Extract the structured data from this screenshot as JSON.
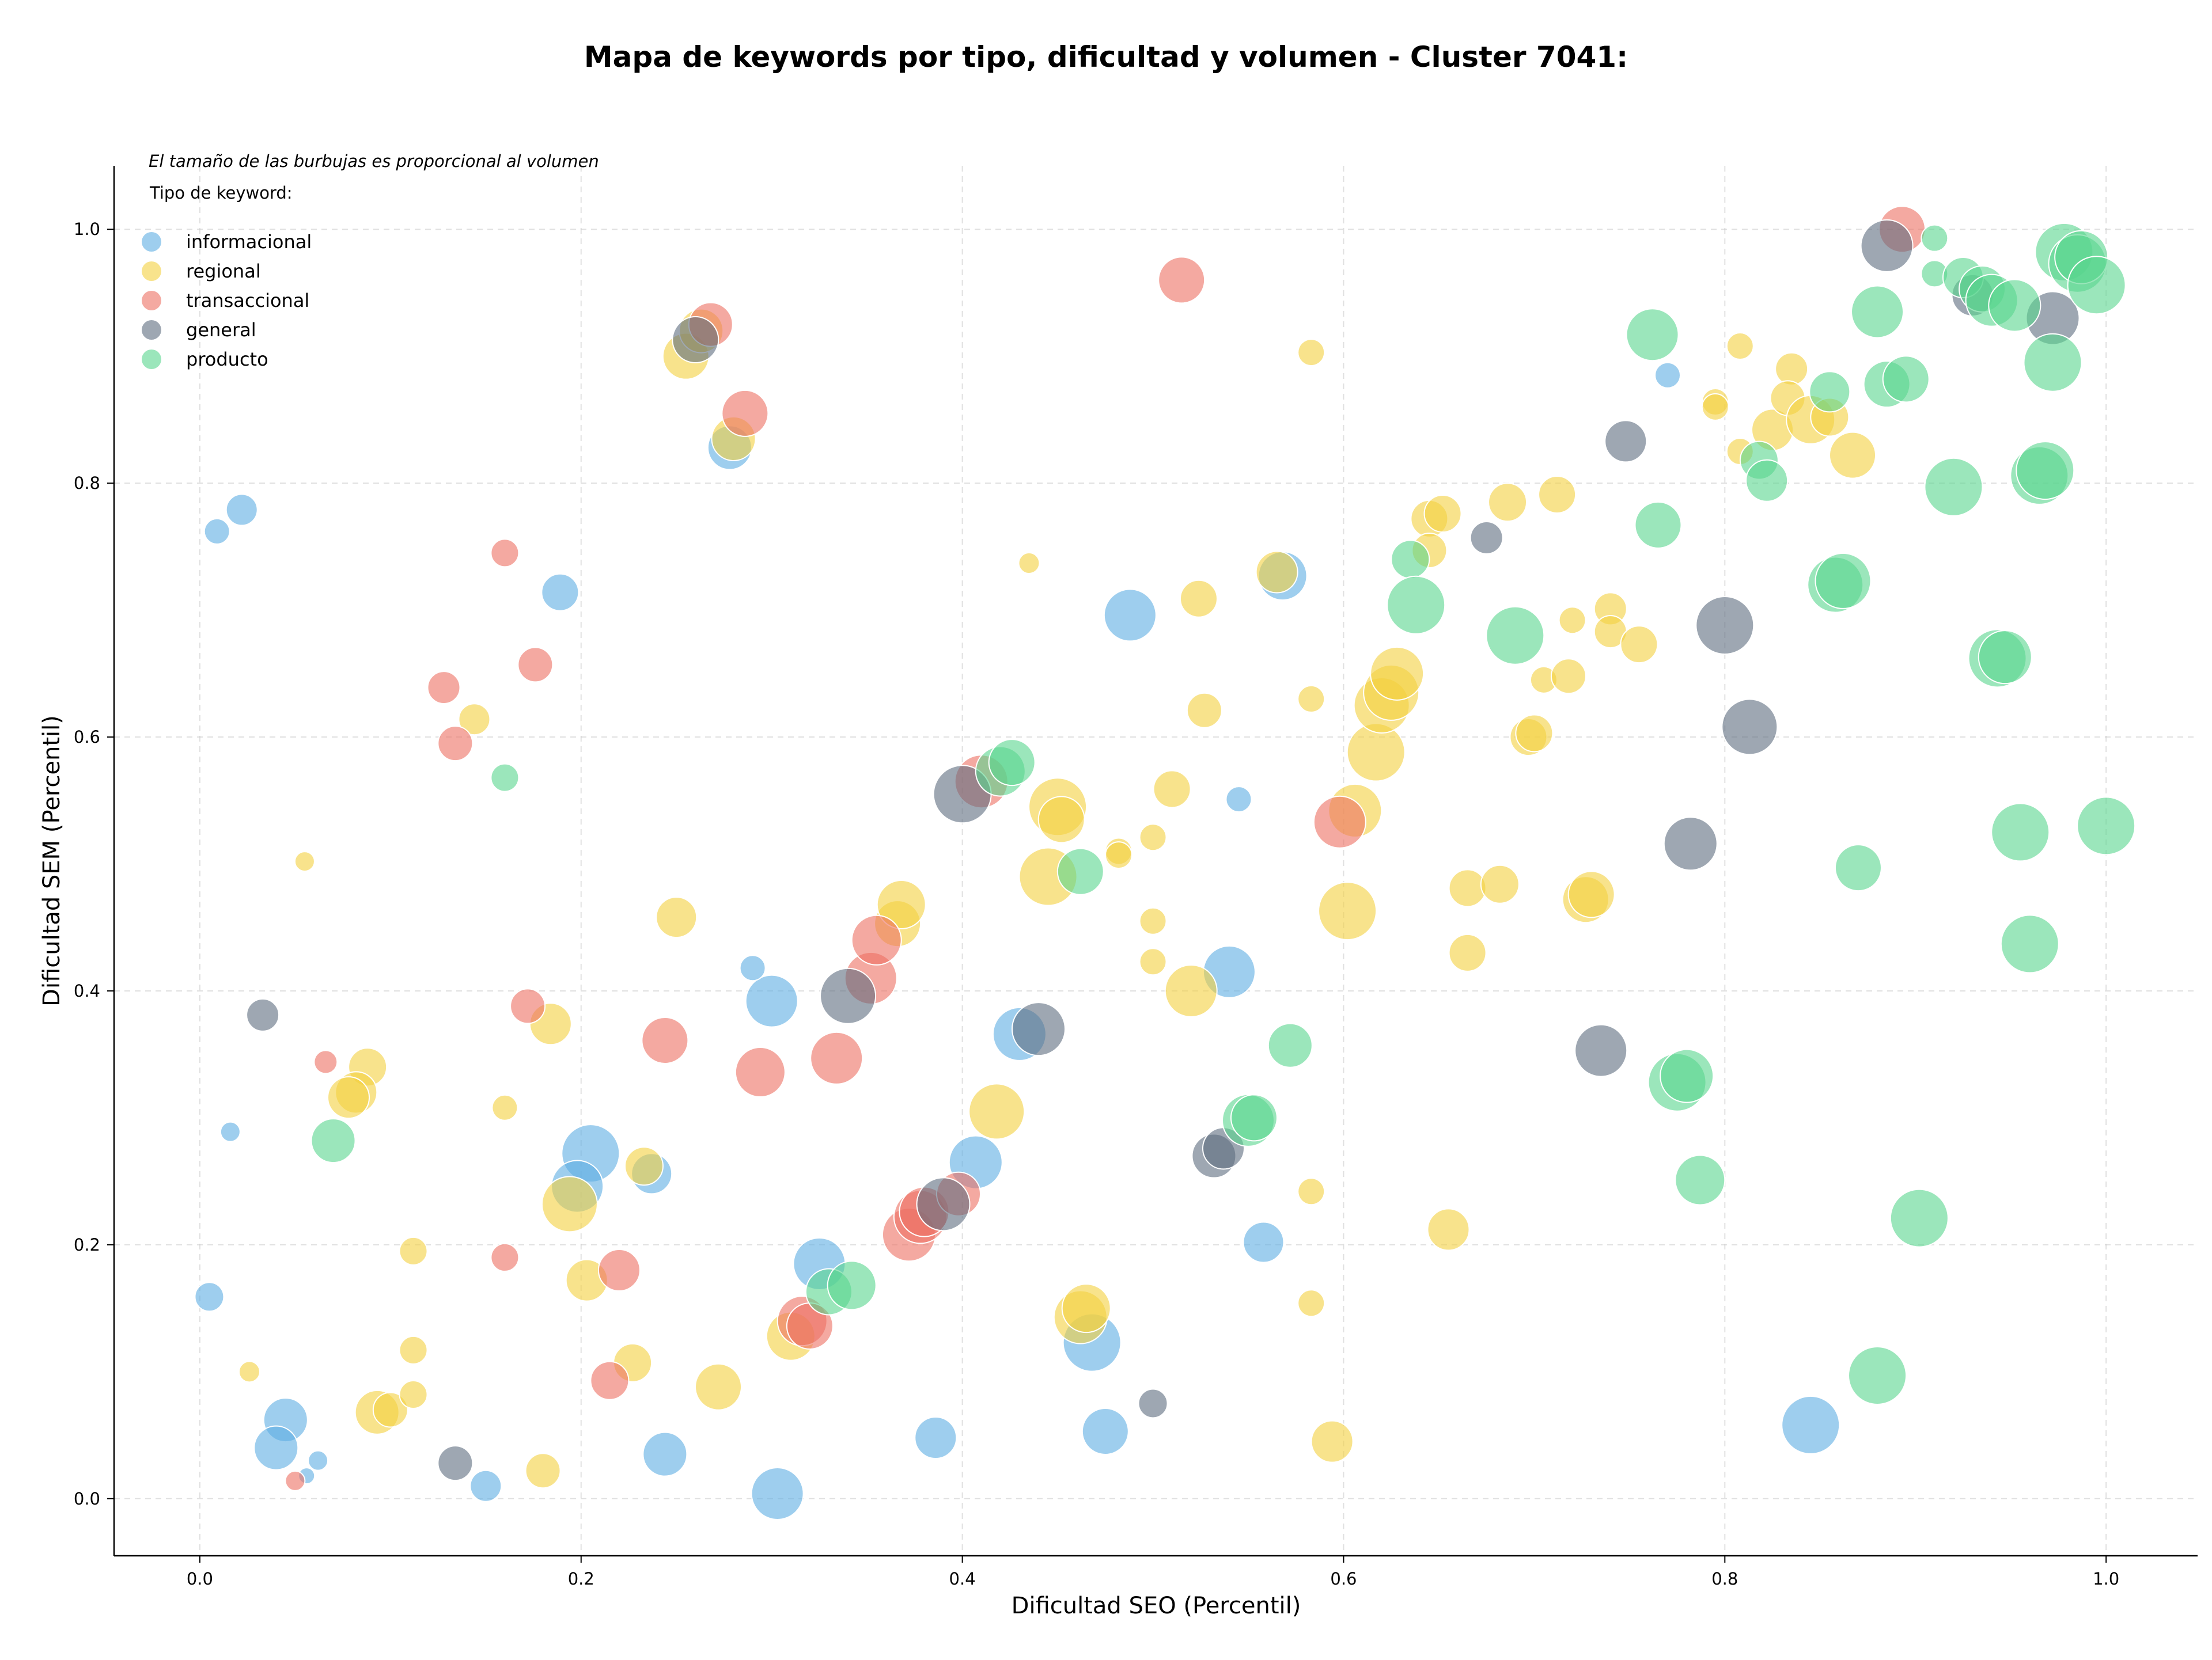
{
  "chart_data": {
    "type": "scatter",
    "title": "Mapa de keywords por tipo, dificultad y volumen - Cluster 7041:",
    "xlabel": "Dificultad SEO (Percentil)",
    "ylabel": "Dificultad SEM (Percentil)",
    "xlim": [
      -0.045,
      1.048
    ],
    "ylim": [
      -0.045,
      1.05
    ],
    "xticks": [
      "0.0",
      "0.2",
      "0.4",
      "0.6",
      "0.8",
      "1.0"
    ],
    "yticks": [
      "0.0",
      "0.2",
      "0.4",
      "0.6",
      "0.8",
      "1.0"
    ],
    "grid": true,
    "legend_position": "top-left",
    "note": "El tamaño de las burbujas es proporcional al volumen",
    "legend_title": "Tipo de keyword:",
    "series": [
      {
        "name": "informacional",
        "color": "#5DADE2",
        "points": [
          [
            0.009,
            0.762,
            22
          ],
          [
            0.022,
            0.779,
            27
          ],
          [
            0.189,
            0.714,
            32
          ],
          [
            0.016,
            0.289,
            17
          ],
          [
            0.005,
            0.159,
            25
          ],
          [
            0.045,
            0.062,
            38
          ],
          [
            0.04,
            0.04,
            38
          ],
          [
            0.062,
            0.03,
            17
          ],
          [
            0.056,
            0.018,
            14
          ],
          [
            0.15,
            0.01,
            27
          ],
          [
            0.205,
            0.272,
            50
          ],
          [
            0.198,
            0.246,
            45
          ],
          [
            0.237,
            0.256,
            35
          ],
          [
            0.244,
            0.035,
            38
          ],
          [
            0.3,
            0.392,
            45
          ],
          [
            0.29,
            0.418,
            22
          ],
          [
            0.303,
            0.004,
            45
          ],
          [
            0.325,
            0.185,
            45
          ],
          [
            0.278,
            0.828,
            38
          ],
          [
            0.386,
            0.048,
            36
          ],
          [
            0.407,
            0.265,
            46
          ],
          [
            0.43,
            0.366,
            46
          ],
          [
            0.488,
            0.696,
            45
          ],
          [
            0.468,
            0.123,
            50
          ],
          [
            0.475,
            0.053,
            40
          ],
          [
            0.54,
            0.415,
            45
          ],
          [
            0.545,
            0.551,
            22
          ],
          [
            0.558,
            0.202,
            35
          ],
          [
            0.568,
            0.727,
            42
          ],
          [
            0.77,
            0.885,
            22
          ],
          [
            0.845,
            0.058,
            50
          ]
        ]
      },
      {
        "name": "regional",
        "color": "#F4D03F",
        "points": [
          [
            0.055,
            0.502,
            17
          ],
          [
            0.026,
            0.1,
            18
          ],
          [
            0.088,
            0.34,
            33
          ],
          [
            0.082,
            0.32,
            36
          ],
          [
            0.078,
            0.316,
            36
          ],
          [
            0.093,
            0.068,
            38
          ],
          [
            0.1,
            0.07,
            30
          ],
          [
            0.112,
            0.195,
            24
          ],
          [
            0.112,
            0.117,
            24
          ],
          [
            0.112,
            0.082,
            24
          ],
          [
            0.144,
            0.614,
            27
          ],
          [
            0.16,
            0.308,
            22
          ],
          [
            0.184,
            0.374,
            36
          ],
          [
            0.18,
            0.022,
            30
          ],
          [
            0.194,
            0.232,
            48
          ],
          [
            0.203,
            0.172,
            36
          ],
          [
            0.233,
            0.262,
            33
          ],
          [
            0.227,
            0.107,
            33
          ],
          [
            0.25,
            0.458,
            35
          ],
          [
            0.255,
            0.9,
            40
          ],
          [
            0.263,
            0.92,
            38
          ],
          [
            0.28,
            0.835,
            38
          ],
          [
            0.272,
            0.088,
            40
          ],
          [
            0.31,
            0.128,
            42
          ],
          [
            0.366,
            0.453,
            40
          ],
          [
            0.368,
            0.468,
            42
          ],
          [
            0.418,
            0.305,
            48
          ],
          [
            0.435,
            0.737,
            18
          ],
          [
            0.445,
            0.49,
            50
          ],
          [
            0.45,
            0.545,
            50
          ],
          [
            0.452,
            0.535,
            40
          ],
          [
            0.462,
            0.143,
            46
          ],
          [
            0.465,
            0.15,
            42
          ],
          [
            0.482,
            0.51,
            23
          ],
          [
            0.482,
            0.507,
            23
          ],
          [
            0.5,
            0.521,
            23
          ],
          [
            0.5,
            0.455,
            23
          ],
          [
            0.5,
            0.423,
            23
          ],
          [
            0.52,
            0.4,
            45
          ],
          [
            0.524,
            0.709,
            32
          ],
          [
            0.527,
            0.621,
            30
          ],
          [
            0.51,
            0.559,
            32
          ],
          [
            0.565,
            0.73,
            36
          ],
          [
            0.583,
            0.903,
            23
          ],
          [
            0.583,
            0.63,
            23
          ],
          [
            0.583,
            0.242,
            23
          ],
          [
            0.583,
            0.154,
            23
          ],
          [
            0.594,
            0.045,
            36
          ],
          [
            0.602,
            0.463,
            50
          ],
          [
            0.606,
            0.542,
            46
          ],
          [
            0.617,
            0.588,
            50
          ],
          [
            0.62,
            0.625,
            48
          ],
          [
            0.625,
            0.635,
            48
          ],
          [
            0.628,
            0.65,
            46
          ],
          [
            0.645,
            0.772,
            32
          ],
          [
            0.652,
            0.776,
            32
          ],
          [
            0.645,
            0.747,
            30
          ],
          [
            0.655,
            0.212,
            36
          ],
          [
            0.665,
            0.481,
            32
          ],
          [
            0.665,
            0.43,
            32
          ],
          [
            0.682,
            0.484,
            33
          ],
          [
            0.686,
            0.785,
            33
          ],
          [
            0.697,
            0.6,
            32
          ],
          [
            0.7,
            0.603,
            32
          ],
          [
            0.705,
            0.645,
            23
          ],
          [
            0.712,
            0.791,
            32
          ],
          [
            0.718,
            0.648,
            30
          ],
          [
            0.72,
            0.692,
            23
          ],
          [
            0.727,
            0.472,
            40
          ],
          [
            0.73,
            0.476,
            40
          ],
          [
            0.74,
            0.701,
            28
          ],
          [
            0.74,
            0.683,
            28
          ],
          [
            0.755,
            0.673,
            32
          ],
          [
            0.795,
            0.864,
            23
          ],
          [
            0.795,
            0.86,
            23
          ],
          [
            0.808,
            0.908,
            23
          ],
          [
            0.808,
            0.825,
            23
          ],
          [
            0.825,
            0.842,
            36
          ],
          [
            0.835,
            0.89,
            28
          ],
          [
            0.833,
            0.867,
            30
          ],
          [
            0.845,
            0.85,
            42
          ],
          [
            0.855,
            0.852,
            33
          ],
          [
            0.867,
            0.822,
            40
          ]
        ]
      },
      {
        "name": "transaccional",
        "color": "#EC7063",
        "points": [
          [
            0.05,
            0.014,
            17
          ],
          [
            0.066,
            0.344,
            20
          ],
          [
            0.128,
            0.639,
            28
          ],
          [
            0.134,
            0.595,
            30
          ],
          [
            0.16,
            0.745,
            24
          ],
          [
            0.16,
            0.19,
            24
          ],
          [
            0.172,
            0.388,
            30
          ],
          [
            0.176,
            0.657,
            30
          ],
          [
            0.215,
            0.093,
            33
          ],
          [
            0.22,
            0.18,
            36
          ],
          [
            0.244,
            0.361,
            40
          ],
          [
            0.268,
            0.925,
            38
          ],
          [
            0.286,
            0.855,
            40
          ],
          [
            0.294,
            0.336,
            43
          ],
          [
            0.316,
            0.14,
            43
          ],
          [
            0.32,
            0.136,
            40
          ],
          [
            0.334,
            0.347,
            45
          ],
          [
            0.352,
            0.41,
            45
          ],
          [
            0.355,
            0.44,
            43
          ],
          [
            0.372,
            0.208,
            46
          ],
          [
            0.378,
            0.222,
            46
          ],
          [
            0.38,
            0.226,
            43
          ],
          [
            0.398,
            0.24,
            38
          ],
          [
            0.41,
            0.565,
            46
          ],
          [
            0.515,
            0.96,
            40
          ],
          [
            0.598,
            0.533,
            45
          ],
          [
            0.893,
            1.0,
            40
          ]
        ]
      },
      {
        "name": "general",
        "color": "#5D6D7E",
        "points": [
          [
            0.033,
            0.381,
            28
          ],
          [
            0.134,
            0.028,
            30
          ],
          [
            0.26,
            0.913,
            40
          ],
          [
            0.34,
            0.396,
            48
          ],
          [
            0.39,
            0.232,
            46
          ],
          [
            0.4,
            0.555,
            50
          ],
          [
            0.44,
            0.37,
            46
          ],
          [
            0.5,
            0.075,
            25
          ],
          [
            0.532,
            0.27,
            38
          ],
          [
            0.537,
            0.276,
            36
          ],
          [
            0.675,
            0.757,
            28
          ],
          [
            0.735,
            0.353,
            45
          ],
          [
            0.748,
            0.833,
            36
          ],
          [
            0.782,
            0.516,
            46
          ],
          [
            0.8,
            0.688,
            50
          ],
          [
            0.813,
            0.608,
            48
          ],
          [
            0.885,
            0.987,
            45
          ],
          [
            0.93,
            0.948,
            36
          ],
          [
            0.972,
            0.93,
            46
          ]
        ]
      },
      {
        "name": "producto",
        "color": "#58D68D",
        "points": [
          [
            0.07,
            0.282,
            38
          ],
          [
            0.16,
            0.568,
            24
          ],
          [
            0.33,
            0.163,
            40
          ],
          [
            0.342,
            0.168,
            42
          ],
          [
            0.42,
            0.573,
            43
          ],
          [
            0.426,
            0.58,
            40
          ],
          [
            0.462,
            0.494,
            40
          ],
          [
            0.55,
            0.298,
            45
          ],
          [
            0.553,
            0.3,
            40
          ],
          [
            0.572,
            0.357,
            38
          ],
          [
            0.635,
            0.74,
            33
          ],
          [
            0.638,
            0.704,
            50
          ],
          [
            0.69,
            0.68,
            50
          ],
          [
            0.762,
            0.917,
            45
          ],
          [
            0.765,
            0.767,
            40
          ],
          [
            0.775,
            0.328,
            50
          ],
          [
            0.78,
            0.333,
            46
          ],
          [
            0.787,
            0.251,
            43
          ],
          [
            0.818,
            0.818,
            33
          ],
          [
            0.822,
            0.802,
            36
          ],
          [
            0.855,
            0.872,
            35
          ],
          [
            0.858,
            0.72,
            48
          ],
          [
            0.862,
            0.723,
            48
          ],
          [
            0.87,
            0.497,
            40
          ],
          [
            0.88,
            0.097,
            50
          ],
          [
            0.88,
            0.935,
            45
          ],
          [
            0.885,
            0.878,
            40
          ],
          [
            0.895,
            0.882,
            40
          ],
          [
            0.902,
            0.221,
            50
          ],
          [
            0.91,
            0.993,
            23
          ],
          [
            0.91,
            0.965,
            23
          ],
          [
            0.92,
            0.797,
            50
          ],
          [
            0.925,
            0.962,
            35
          ],
          [
            0.935,
            0.953,
            40
          ],
          [
            0.94,
            0.944,
            45
          ],
          [
            0.943,
            0.662,
            50
          ],
          [
            0.947,
            0.663,
            46
          ],
          [
            0.952,
            0.94,
            45
          ],
          [
            0.955,
            0.525,
            50
          ],
          [
            0.96,
            0.437,
            50
          ],
          [
            0.965,
            0.806,
            50
          ],
          [
            0.968,
            0.81,
            50
          ],
          [
            0.972,
            0.895,
            50
          ],
          [
            0.978,
            0.982,
            50
          ],
          [
            0.985,
            0.973,
            50
          ],
          [
            0.987,
            0.978,
            46
          ],
          [
            0.995,
            0.956,
            50
          ],
          [
            1.0,
            0.53,
            50
          ]
        ]
      }
    ]
  }
}
